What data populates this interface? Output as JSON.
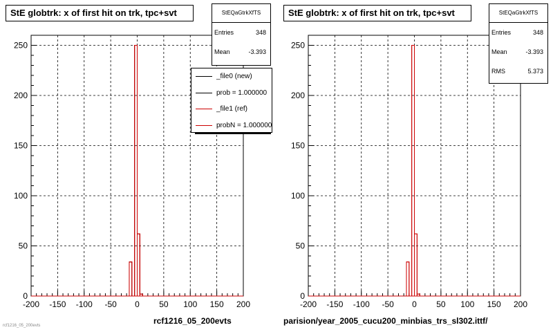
{
  "chart_data": [
    {
      "type": "histogram",
      "title": "StE globtrk: x of first hit on trk, tpc+svt",
      "xlabel": "rcf1216_05_200evts",
      "ylabel": "",
      "xlim": [
        -200,
        200
      ],
      "ylim": [
        0,
        260
      ],
      "grid": true,
      "xticks": [
        -200,
        -150,
        -100,
        -50,
        0,
        50,
        100,
        150,
        200
      ],
      "yticks": [
        0,
        50,
        100,
        150,
        200,
        250
      ],
      "bin_width": 5,
      "bins": [
        {
          "x0": -200,
          "x1": -15,
          "value": 0
        },
        {
          "x0": -15,
          "x1": -10,
          "value": 34
        },
        {
          "x0": -10,
          "x1": -5,
          "value": 0
        },
        {
          "x0": -5,
          "x1": 0,
          "value": 250
        },
        {
          "x0": 0,
          "x1": 5,
          "value": 62
        },
        {
          "x0": 5,
          "x1": 10,
          "value": 2
        },
        {
          "x0": 10,
          "x1": 200,
          "value": 0
        }
      ],
      "series": [
        {
          "name": "_file0 (new)",
          "color": "#000000"
        },
        {
          "name": "_file1 (ref)",
          "color": "#cc0000"
        }
      ],
      "stats": {
        "name": "StEQaGtrkXfTS",
        "entries_label": "Entries",
        "entries": "348",
        "mean_label": "Mean",
        "mean": "-3.393"
      },
      "legend": {
        "placement": "top-right",
        "items": [
          {
            "text": "_file0 (new)",
            "color": "#000000"
          },
          {
            "text": "prob = 1.000000",
            "color": "#000000"
          },
          {
            "text": "_file1 (ref)",
            "color": "#cc0000"
          },
          {
            "text": "probN = 1.000000",
            "color": "#cc0000"
          }
        ]
      }
    },
    {
      "type": "histogram",
      "title": "StE globtrk: x of first hit on trk, tpc+svt",
      "xlabel": "parision/year_2005_cucu200_minbias_trs_sl302.ittf/",
      "ylabel": "",
      "xlim": [
        -200,
        200
      ],
      "ylim": [
        0,
        260
      ],
      "grid": true,
      "xticks": [
        -200,
        -150,
        -100,
        -50,
        0,
        50,
        100,
        150,
        200
      ],
      "yticks": [
        0,
        50,
        100,
        150,
        200,
        250
      ],
      "bin_width": 5,
      "bins": [
        {
          "x0": -200,
          "x1": -15,
          "value": 0
        },
        {
          "x0": -15,
          "x1": -10,
          "value": 34
        },
        {
          "x0": -10,
          "x1": -5,
          "value": 0
        },
        {
          "x0": -5,
          "x1": 0,
          "value": 250
        },
        {
          "x0": 0,
          "x1": 5,
          "value": 62
        },
        {
          "x0": 5,
          "x1": 10,
          "value": 2
        },
        {
          "x0": 10,
          "x1": 200,
          "value": 0
        }
      ],
      "series": [
        {
          "name": "",
          "color": "#cc0000"
        }
      ],
      "stats": {
        "name": "StEQaGtrkXfTS",
        "entries_label": "Entries",
        "entries": "348",
        "mean_label": "Mean",
        "mean": "-3.393",
        "rms_label": "RMS",
        "rms": "5.373"
      }
    }
  ],
  "footer": "rcf1216_05_200evts"
}
